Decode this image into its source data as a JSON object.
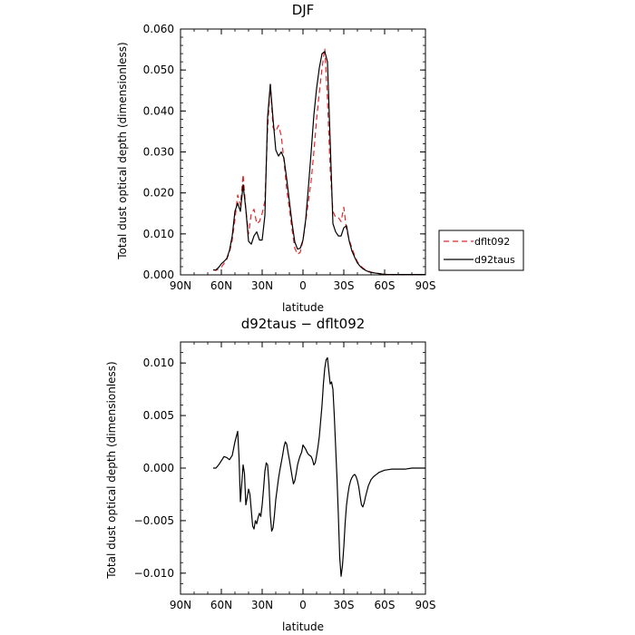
{
  "chart_data": [
    {
      "type": "line",
      "title": "DJF",
      "xlabel": "latitude",
      "ylabel": "Total dust optical depth (dimensionless)",
      "xlim": [
        90,
        -90
      ],
      "ylim": [
        0,
        0.06
      ],
      "x_ticks": [
        90,
        60,
        30,
        0,
        -30,
        -60,
        -90
      ],
      "x_tick_labels": [
        "90N",
        "60N",
        "30N",
        "0",
        "30S",
        "60S",
        "90S"
      ],
      "y_ticks": [
        0,
        0.01,
        0.02,
        0.03,
        0.04,
        0.05,
        0.06
      ],
      "y_tick_labels": [
        "0.000",
        "0.010",
        "0.020",
        "0.030",
        "0.040",
        "0.050",
        "0.060"
      ],
      "grid": false,
      "legend": {
        "placement": "outside-right",
        "entries": [
          "dflt092",
          "d92taus"
        ]
      },
      "series": [
        {
          "name": "dflt092",
          "color": "#e8252a",
          "style": "dashed",
          "x": [
            66,
            64,
            62,
            60,
            58,
            56,
            54,
            52,
            50,
            48,
            46,
            44,
            42,
            40,
            38,
            36,
            34,
            32,
            30,
            28,
            26,
            24,
            22,
            20,
            18,
            16,
            14,
            12,
            10,
            8,
            6,
            4,
            2,
            0,
            -2,
            -4,
            -6,
            -8,
            -10,
            -12,
            -14,
            -16,
            -18,
            -20,
            -22,
            -24,
            -26,
            -28,
            -30,
            -32,
            -34,
            -36,
            -38,
            -40,
            -42,
            -44,
            -46,
            -48,
            -50,
            -52,
            -54,
            -56,
            -58,
            -60,
            -62,
            -64,
            -66,
            -68,
            -70,
            -75,
            -80,
            -85,
            -90
          ],
          "y": [
            0.0012,
            0.0011,
            0.0014,
            0.0019,
            0.0028,
            0.0038,
            0.0055,
            0.0085,
            0.0135,
            0.0195,
            0.017,
            0.0245,
            0.016,
            0.01,
            0.015,
            0.016,
            0.0125,
            0.013,
            0.015,
            0.018,
            0.0355,
            0.0465,
            0.036,
            0.035,
            0.0365,
            0.034,
            0.028,
            0.021,
            0.016,
            0.011,
            0.0065,
            0.005,
            0.0055,
            0.0085,
            0.013,
            0.018,
            0.023,
            0.03,
            0.038,
            0.0445,
            0.0505,
            0.0553,
            0.043,
            0.0255,
            0.0155,
            0.014,
            0.014,
            0.013,
            0.0165,
            0.011,
            0.0085,
            0.0065,
            0.0047,
            0.0032,
            0.0023,
            0.0017,
            0.0012,
            0.0009,
            0.0007,
            0.0005,
            0.0004,
            0.0003,
            0.0002,
            0.00015,
            0.0001,
            0.0001,
            0.0001,
            0.0001,
            0.0001,
            0.0001,
            0.0001,
            0.0001,
            0.0001
          ]
        },
        {
          "name": "d92taus",
          "color": "#000000",
          "style": "solid",
          "x": [
            66,
            64,
            62,
            60,
            58,
            56,
            54,
            52,
            50,
            48,
            46,
            44,
            42,
            40,
            38,
            36,
            34,
            32,
            30,
            28,
            26,
            24,
            22,
            20,
            18,
            16,
            14,
            12,
            10,
            8,
            6,
            4,
            2,
            0,
            -2,
            -4,
            -6,
            -8,
            -10,
            -12,
            -14,
            -16,
            -18,
            -20,
            -22,
            -24,
            -26,
            -28,
            -30,
            -32,
            -34,
            -36,
            -38,
            -40,
            -42,
            -44,
            -46,
            -48,
            -50,
            -52,
            -54,
            -56,
            -58,
            -60,
            -62,
            -64,
            -66,
            -68,
            -70,
            -75,
            -80,
            -85,
            -90
          ],
          "y": [
            0.0012,
            0.0012,
            0.0018,
            0.0027,
            0.0033,
            0.004,
            0.006,
            0.0095,
            0.0155,
            0.0175,
            0.0155,
            0.022,
            0.016,
            0.0082,
            0.0075,
            0.0095,
            0.0105,
            0.0085,
            0.0085,
            0.0145,
            0.0385,
            0.0465,
            0.038,
            0.0305,
            0.029,
            0.03,
            0.0285,
            0.0235,
            0.018,
            0.0125,
            0.008,
            0.0063,
            0.0065,
            0.0085,
            0.0135,
            0.0215,
            0.03,
            0.039,
            0.0455,
            0.0505,
            0.054,
            0.0545,
            0.052,
            0.0325,
            0.0125,
            0.0105,
            0.0095,
            0.0095,
            0.0115,
            0.012,
            0.0082,
            0.0058,
            0.0043,
            0.0029,
            0.0021,
            0.0015,
            0.0011,
            0.0008,
            0.0006,
            0.0005,
            0.0004,
            0.0003,
            0.0002,
            0.00015,
            0.0001,
            0.0001,
            0.0001,
            0.0001,
            0.0001,
            0.0001,
            0.0001,
            0.0001,
            0.0001
          ]
        }
      ]
    },
    {
      "type": "line",
      "title": "d92taus − dflt092",
      "xlabel": "latitude",
      "ylabel": "Total dust optical depth (dimensionless)",
      "xlim": [
        90,
        -90
      ],
      "ylim": [
        -0.012,
        0.012
      ],
      "x_ticks": [
        90,
        60,
        30,
        0,
        -30,
        -60,
        -90
      ],
      "x_tick_labels": [
        "90N",
        "60N",
        "30N",
        "0",
        "30S",
        "60S",
        "90S"
      ],
      "y_ticks": [
        -0.01,
        -0.005,
        0,
        0.005,
        0.01
      ],
      "y_tick_labels": [
        "−0.010",
        "−0.005",
        "0.000",
        "0.005",
        "0.010"
      ],
      "grid": false,
      "series": [
        {
          "color": "#000000",
          "style": "solid",
          "x": [
            66,
            64,
            62,
            60,
            58,
            56,
            54,
            52,
            50,
            48,
            47,
            46,
            45,
            44,
            43,
            42,
            41,
            40,
            39,
            38,
            37,
            36,
            35,
            34,
            33,
            32,
            31,
            30,
            29,
            28,
            27,
            26,
            25,
            24,
            23,
            22,
            21,
            20,
            19,
            18,
            17,
            16,
            15,
            14,
            13,
            12,
            11,
            10,
            9,
            8,
            7,
            6,
            5,
            4,
            3,
            2,
            1,
            0,
            -1,
            -2,
            -3,
            -4,
            -5,
            -6,
            -7,
            -8,
            -9,
            -10,
            -11,
            -12,
            -13,
            -14,
            -15,
            -16,
            -17,
            -18,
            -19,
            -20,
            -21,
            -22,
            -23,
            -24,
            -25,
            -26,
            -27,
            -28,
            -29,
            -30,
            -31,
            -32,
            -33,
            -34,
            -35,
            -36,
            -37,
            -38,
            -39,
            -40,
            -41,
            -42,
            -43,
            -44,
            -45,
            -46,
            -47,
            -48,
            -50,
            -52,
            -54,
            -56,
            -58,
            -60,
            -65,
            -70,
            -75,
            -80,
            -85,
            -90
          ],
          "y": [
            0,
            0,
            0.0003,
            0.0007,
            0.0011,
            0.001,
            0.0008,
            0.0012,
            0.0025,
            0.0035,
            0.001,
            -0.0032,
            -0.0015,
            0.0003,
            -0.0005,
            -0.0035,
            -0.0028,
            -0.002,
            -0.0025,
            -0.004,
            -0.0055,
            -0.0058,
            -0.005,
            -0.0053,
            -0.0047,
            -0.0043,
            -0.0046,
            -0.0035,
            -0.002,
            -0.0003,
            0.0005,
            0.0003,
            -0.0015,
            -0.0045,
            -0.006,
            -0.0057,
            -0.0045,
            -0.003,
            -0.002,
            -0.001,
            -0.0002,
            0.0005,
            0.0012,
            0.002,
            0.0025,
            0.0023,
            0.0015,
            0.0008,
            0.0,
            -0.0008,
            -0.0015,
            -0.0012,
            -0.0005,
            0.0003,
            0.0008,
            0.0012,
            0.0015,
            0.0022,
            0.002,
            0.0018,
            0.0015,
            0.0013,
            0.0012,
            0.0011,
            0.0008,
            0.0003,
            0.0005,
            0.0012,
            0.002,
            0.003,
            0.0045,
            0.006,
            0.008,
            0.0095,
            0.0103,
            0.0105,
            0.0092,
            0.008,
            0.0082,
            0.0075,
            0.005,
            0.002,
            -0.001,
            -0.0045,
            -0.0085,
            -0.0103,
            -0.0093,
            -0.0075,
            -0.0052,
            -0.0035,
            -0.0025,
            -0.0017,
            -0.0012,
            -0.0009,
            -0.0007,
            -0.0006,
            -0.0008,
            -0.0012,
            -0.0018,
            -0.0027,
            -0.0035,
            -0.0037,
            -0.0033,
            -0.0027,
            -0.0022,
            -0.0017,
            -0.0011,
            -0.0008,
            -0.0006,
            -0.0004,
            -0.0003,
            -0.0002,
            -0.0001,
            -0.0001,
            -0.0001,
            0,
            0,
            0
          ]
        }
      ]
    }
  ]
}
